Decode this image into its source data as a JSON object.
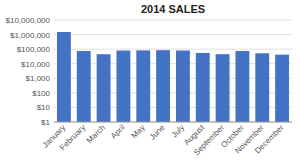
{
  "chart_data": {
    "type": "bar",
    "title": "2014 SALES",
    "categories": [
      "January",
      "February",
      "March",
      "April",
      "May",
      "June",
      "July",
      "August",
      "September",
      "October",
      "November",
      "December"
    ],
    "values": [
      1500000,
      75000,
      45000,
      80000,
      82000,
      85000,
      80000,
      55000,
      45000,
      75000,
      52000,
      42000
    ],
    "color": "#4472C4",
    "log": "y",
    "ylim": [
      1,
      10000000
    ],
    "yticks": [
      {
        "value": 1,
        "label": "$1"
      },
      {
        "value": 10,
        "label": "$10"
      },
      {
        "value": 100,
        "label": "$100"
      },
      {
        "value": 1000,
        "label": "$1,000"
      },
      {
        "value": 10000,
        "label": "$10,000"
      },
      {
        "value": 100000,
        "label": "$100,000"
      },
      {
        "value": 1000000,
        "label": "$1,000,000"
      },
      {
        "value": 10000000,
        "label": "$10,000,000"
      }
    ],
    "grid": true
  }
}
